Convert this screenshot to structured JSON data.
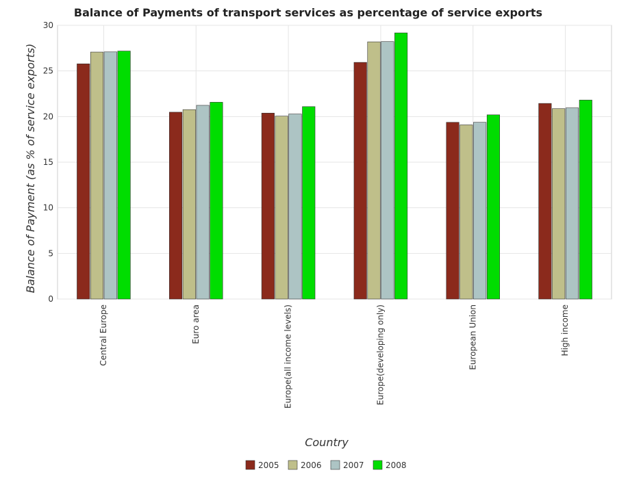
{
  "chart_data": {
    "type": "bar",
    "title": "Balance of Payments of transport services as percentage of service exports",
    "xlabel": "Country",
    "ylabel": "Balance of Payment (as % of service exports)",
    "ylim": [
      0,
      30
    ],
    "yticks": [
      0,
      5,
      10,
      15,
      20,
      25,
      30
    ],
    "grid": true,
    "legend_position": "bottom-center",
    "categories": [
      "Central Europe",
      "Euro area",
      "Europe(all income levels)",
      "Europe(developing only)",
      "European Union",
      "High income"
    ],
    "series": [
      {
        "name": "2005",
        "color": "#8b2a1c",
        "values": [
          25.78,
          20.48,
          20.38,
          25.94,
          19.37,
          21.44
        ]
      },
      {
        "name": "2006",
        "color": "#bfbf8a",
        "values": [
          27.07,
          20.76,
          20.05,
          28.19,
          19.09,
          20.87
        ]
      },
      {
        "name": "2007",
        "color": "#adc4c4",
        "values": [
          27.09,
          21.23,
          20.28,
          28.22,
          19.37,
          20.95
        ]
      },
      {
        "name": "2008",
        "color": "#00dd00",
        "values": [
          27.18,
          21.57,
          21.09,
          29.17,
          20.19,
          21.81
        ]
      }
    ]
  }
}
